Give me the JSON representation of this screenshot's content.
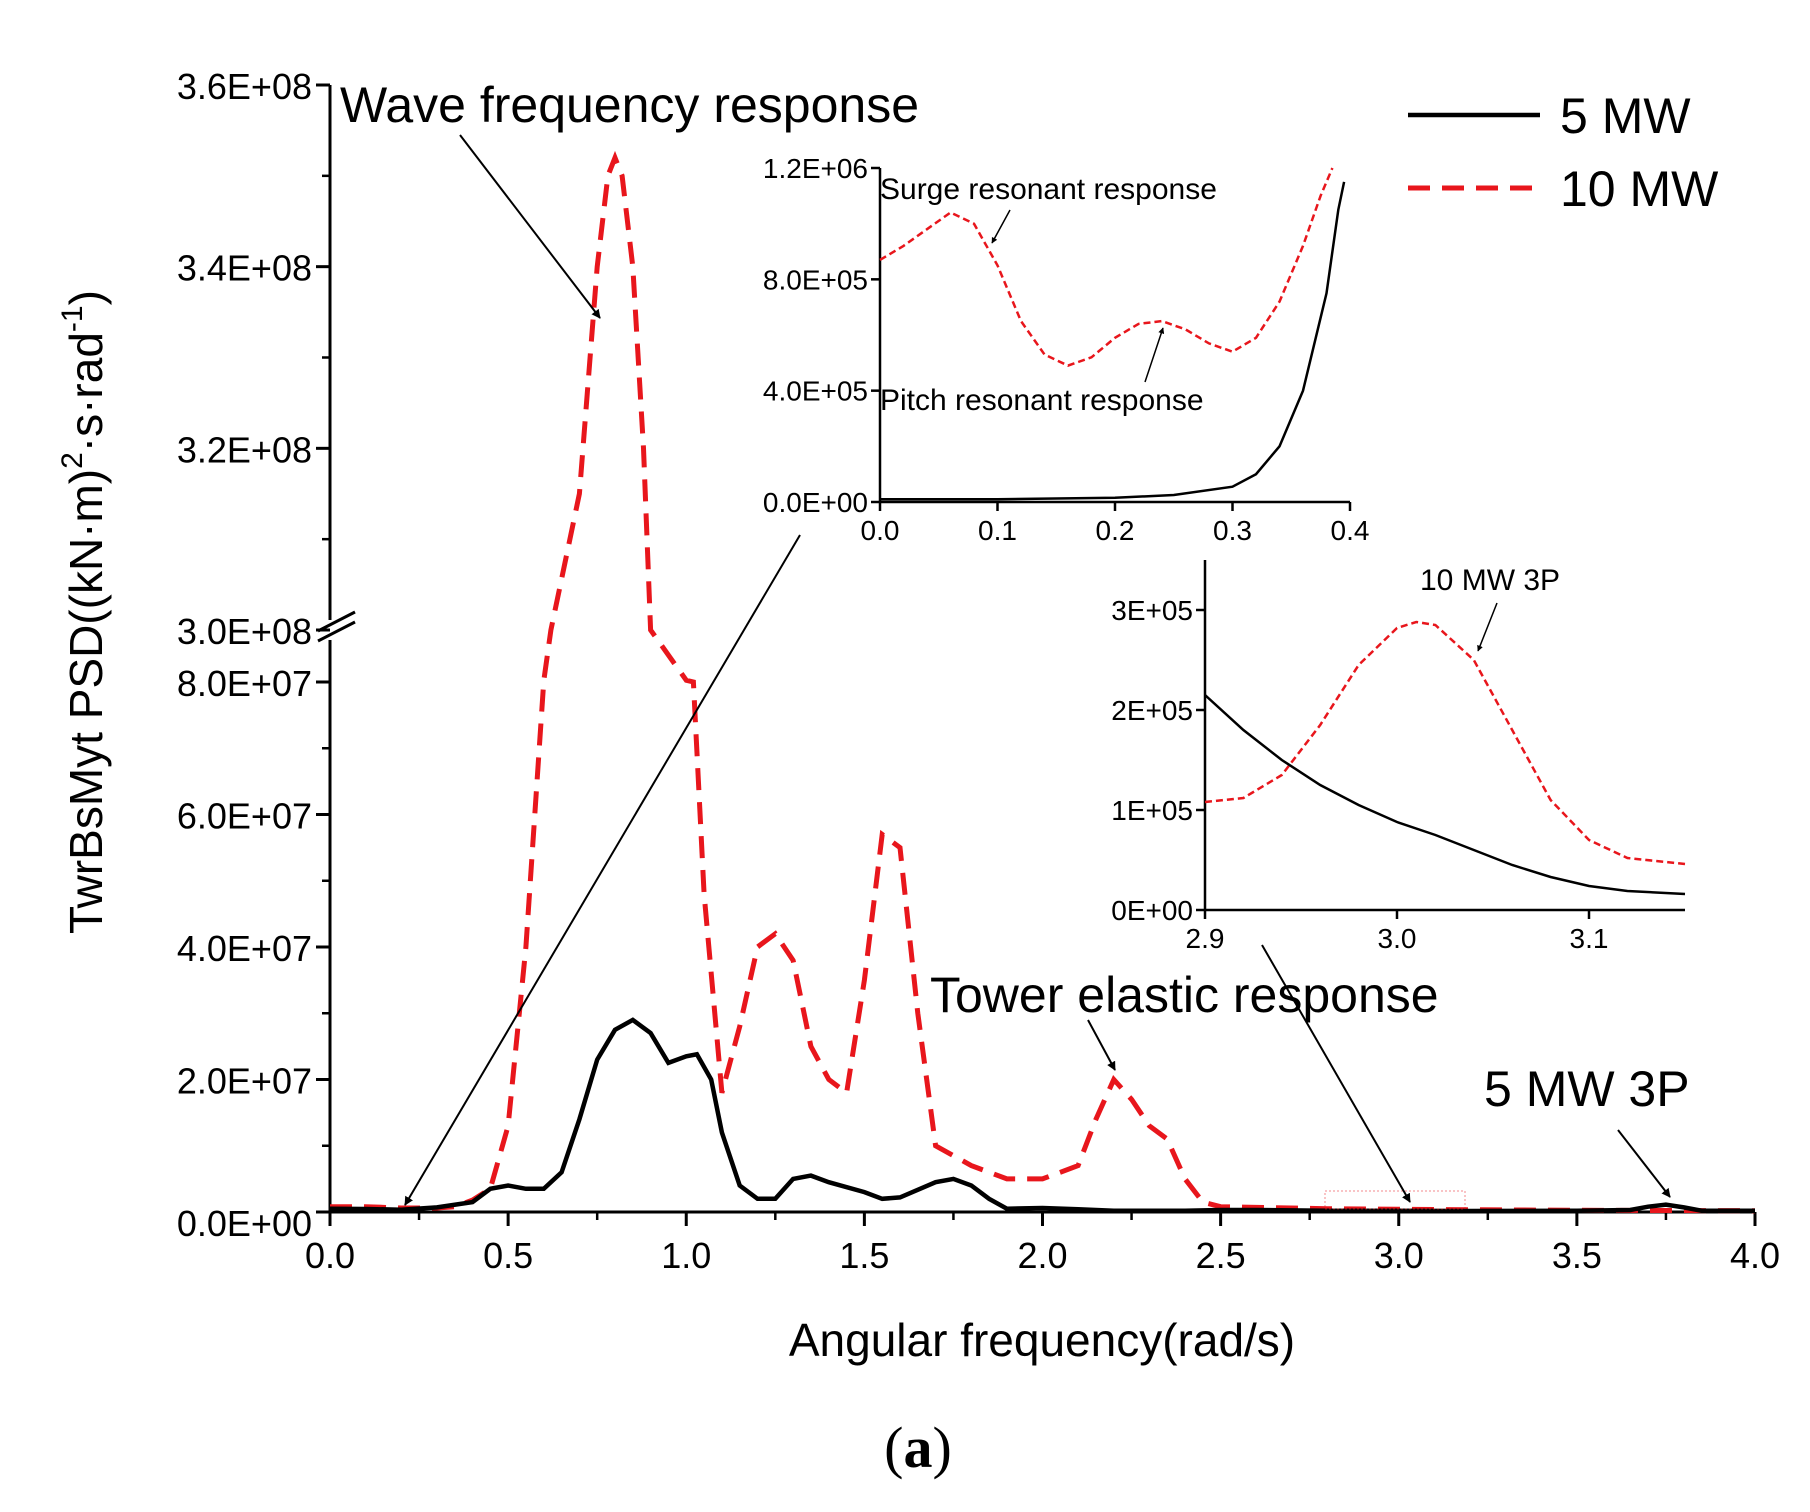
{
  "chart_data": [
    {
      "type": "line",
      "panel": "main",
      "xlabel": "Angular frequency(rad/s)",
      "ylabel": "TwrBsMyt PSD((kN·m)",
      "ylabel_sup1": "2",
      "ylabel_mid": "·s·rad",
      "ylabel_sup2": "-1",
      "ylabel_end": ")",
      "xlim": [
        0,
        4
      ],
      "x_ticks": [
        "0.0",
        "0.5",
        "1.0",
        "1.5",
        "2.0",
        "2.5",
        "3.0",
        "3.5",
        "4.0"
      ],
      "y_axis_break": true,
      "ylim_lower": [
        0,
        80000000
      ],
      "ylim_upper": [
        300000000,
        360000000
      ],
      "y_ticks_lower": [
        "0.0E+00",
        "2.0E+07",
        "4.0E+07",
        "6.0E+07",
        "8.0E+07"
      ],
      "y_ticks_upper": [
        "3.0E+08",
        "3.2E+08",
        "3.4E+08",
        "3.6E+08"
      ],
      "legend_position": "top-right",
      "series": [
        {
          "name": "5 MW",
          "color": "#000000",
          "style": "solid",
          "points": [
            [
              0.0,
              500000
            ],
            [
              0.1,
              450000
            ],
            [
              0.2,
              350000
            ],
            [
              0.3,
              700000
            ],
            [
              0.4,
              1500000
            ],
            [
              0.45,
              3500000
            ],
            [
              0.5,
              4000000
            ],
            [
              0.55,
              3500000
            ],
            [
              0.6,
              3500000
            ],
            [
              0.65,
              6000000
            ],
            [
              0.7,
              14000000
            ],
            [
              0.75,
              23000000
            ],
            [
              0.8,
              27500000
            ],
            [
              0.85,
              29000000
            ],
            [
              0.9,
              27000000
            ],
            [
              0.95,
              22500000
            ],
            [
              1.0,
              23500000
            ],
            [
              1.03,
              23800000
            ],
            [
              1.07,
              20000000
            ],
            [
              1.1,
              12000000
            ],
            [
              1.15,
              4000000
            ],
            [
              1.2,
              2000000
            ],
            [
              1.25,
              2000000
            ],
            [
              1.3,
              5000000
            ],
            [
              1.35,
              5500000
            ],
            [
              1.4,
              4500000
            ],
            [
              1.5,
              3000000
            ],
            [
              1.55,
              2000000
            ],
            [
              1.6,
              2200000
            ],
            [
              1.7,
              4500000
            ],
            [
              1.75,
              5000000
            ],
            [
              1.8,
              4000000
            ],
            [
              1.85,
              2000000
            ],
            [
              1.9,
              500000
            ],
            [
              2.0,
              600000
            ],
            [
              2.1,
              400000
            ],
            [
              2.2,
              200000
            ],
            [
              2.4,
              200000
            ],
            [
              2.5,
              300000
            ],
            [
              2.6,
              300000
            ],
            [
              2.8,
              200000
            ],
            [
              3.0,
              200000
            ],
            [
              3.2,
              150000
            ],
            [
              3.5,
              200000
            ],
            [
              3.65,
              300000
            ],
            [
              3.7,
              800000
            ],
            [
              3.75,
              1100000
            ],
            [
              3.8,
              700000
            ],
            [
              3.85,
              200000
            ],
            [
              4.0,
              200000
            ]
          ]
        },
        {
          "name": "10 MW",
          "color": "#e8161c",
          "style": "dashed",
          "points": [
            [
              0.0,
              800000
            ],
            [
              0.1,
              800000
            ],
            [
              0.2,
              600000
            ],
            [
              0.3,
              600000
            ],
            [
              0.35,
              800000
            ],
            [
              0.4,
              1800000
            ],
            [
              0.45,
              3500000
            ],
            [
              0.5,
              13000000
            ],
            [
              0.55,
              40000000
            ],
            [
              0.6,
              86000000
            ],
            [
              0.62,
              300000000
            ],
            [
              0.7,
              315000000
            ],
            [
              0.75,
              340000000
            ],
            [
              0.78,
              350000000
            ],
            [
              0.8,
              352000000
            ],
            [
              0.82,
              350000000
            ],
            [
              0.85,
              340000000
            ],
            [
              0.88,
              320000000
            ],
            [
              0.9,
              300000000
            ],
            [
              1.0,
              87000000
            ],
            [
              1.02,
              80000000
            ],
            [
              1.05,
              48000000
            ],
            [
              1.1,
              18000000
            ],
            [
              1.15,
              28000000
            ],
            [
              1.2,
              40000000
            ],
            [
              1.25,
              42000000
            ],
            [
              1.3,
              38000000
            ],
            [
              1.35,
              25000000
            ],
            [
              1.4,
              20000000
            ],
            [
              1.45,
              18000000
            ],
            [
              1.5,
              35000000
            ],
            [
              1.55,
              57000000
            ],
            [
              1.6,
              55000000
            ],
            [
              1.65,
              30000000
            ],
            [
              1.7,
              10000000
            ],
            [
              1.8,
              7000000
            ],
            [
              1.9,
              5000000
            ],
            [
              2.0,
              5000000
            ],
            [
              2.05,
              6000000
            ],
            [
              2.1,
              7000000
            ],
            [
              2.15,
              14000000
            ],
            [
              2.2,
              20000000
            ],
            [
              2.25,
              17000000
            ],
            [
              2.3,
              13000000
            ],
            [
              2.35,
              11000000
            ],
            [
              2.4,
              5000000
            ],
            [
              2.45,
              1500000
            ],
            [
              2.5,
              800000
            ],
            [
              2.6,
              700000
            ],
            [
              2.8,
              500000
            ],
            [
              3.0,
              400000
            ],
            [
              3.2,
              350000
            ],
            [
              3.5,
              250000
            ],
            [
              4.0,
              200000
            ]
          ]
        }
      ],
      "annotations": {
        "wave": "Wave frequency response",
        "tower": "Tower elastic response",
        "p3_5mw": "5 MW 3P"
      }
    },
    {
      "type": "line",
      "panel": "inset-low-frequency",
      "xlim": [
        0,
        0.4
      ],
      "ylim": [
        0,
        1200000
      ],
      "x_ticks": [
        "0.0",
        "0.1",
        "0.2",
        "0.3",
        "0.4"
      ],
      "y_ticks": [
        "0.0E+00",
        "4.0E+05",
        "8.0E+05",
        "1.2E+06"
      ],
      "series": [
        {
          "name": "5 MW",
          "color": "#000000",
          "style": "solid",
          "points": [
            [
              0.0,
              10000
            ],
            [
              0.1,
              10000
            ],
            [
              0.2,
              15000
            ],
            [
              0.25,
              25000
            ],
            [
              0.3,
              55000
            ],
            [
              0.32,
              100000
            ],
            [
              0.34,
              200000
            ],
            [
              0.36,
              400000
            ],
            [
              0.38,
              750000
            ],
            [
              0.39,
              1050000
            ],
            [
              0.395,
              1150000
            ]
          ]
        },
        {
          "name": "10 MW",
          "color": "#e8161c",
          "style": "dashed",
          "points": [
            [
              0.0,
              870000
            ],
            [
              0.02,
              920000
            ],
            [
              0.04,
              980000
            ],
            [
              0.06,
              1040000
            ],
            [
              0.08,
              1000000
            ],
            [
              0.1,
              850000
            ],
            [
              0.12,
              650000
            ],
            [
              0.14,
              530000
            ],
            [
              0.16,
              490000
            ],
            [
              0.18,
              520000
            ],
            [
              0.2,
              590000
            ],
            [
              0.22,
              640000
            ],
            [
              0.24,
              650000
            ],
            [
              0.26,
              620000
            ],
            [
              0.28,
              570000
            ],
            [
              0.3,
              540000
            ],
            [
              0.32,
              590000
            ],
            [
              0.34,
              720000
            ],
            [
              0.36,
              920000
            ],
            [
              0.375,
              1100000
            ],
            [
              0.385,
              1200000
            ]
          ]
        }
      ],
      "annotations": {
        "surge": "Surge resonant response",
        "pitch": "Pitch resonant response"
      }
    },
    {
      "type": "line",
      "panel": "inset-3P",
      "xlim": [
        2.9,
        3.15
      ],
      "ylim": [
        0,
        350000
      ],
      "x_ticks": [
        "2.9",
        "3.0",
        "3.1"
      ],
      "y_ticks": [
        "0E+00",
        "1E+05",
        "2E+05",
        "3E+05"
      ],
      "series": [
        {
          "name": "5 MW",
          "color": "#000000",
          "style": "solid",
          "points": [
            [
              2.9,
              215000
            ],
            [
              2.92,
              180000
            ],
            [
              2.94,
              150000
            ],
            [
              2.96,
              125000
            ],
            [
              2.98,
              105000
            ],
            [
              3.0,
              88000
            ],
            [
              3.02,
              75000
            ],
            [
              3.04,
              60000
            ],
            [
              3.06,
              45000
            ],
            [
              3.08,
              33000
            ],
            [
              3.1,
              24000
            ],
            [
              3.12,
              19000
            ],
            [
              3.15,
              16000
            ]
          ]
        },
        {
          "name": "10 MW",
          "color": "#e8161c",
          "style": "dashed",
          "points": [
            [
              2.9,
              108000
            ],
            [
              2.92,
              112000
            ],
            [
              2.94,
              135000
            ],
            [
              2.96,
              185000
            ],
            [
              2.98,
              245000
            ],
            [
              3.0,
              282000
            ],
            [
              3.01,
              288000
            ],
            [
              3.02,
              285000
            ],
            [
              3.04,
              250000
            ],
            [
              3.06,
              180000
            ],
            [
              3.08,
              110000
            ],
            [
              3.1,
              70000
            ],
            [
              3.12,
              52000
            ],
            [
              3.15,
              46000
            ]
          ]
        }
      ],
      "annotations": {
        "p3_10mw": "10 MW 3P"
      }
    }
  ],
  "caption": {
    "open": "(",
    "letter": "a",
    "close": ")"
  }
}
